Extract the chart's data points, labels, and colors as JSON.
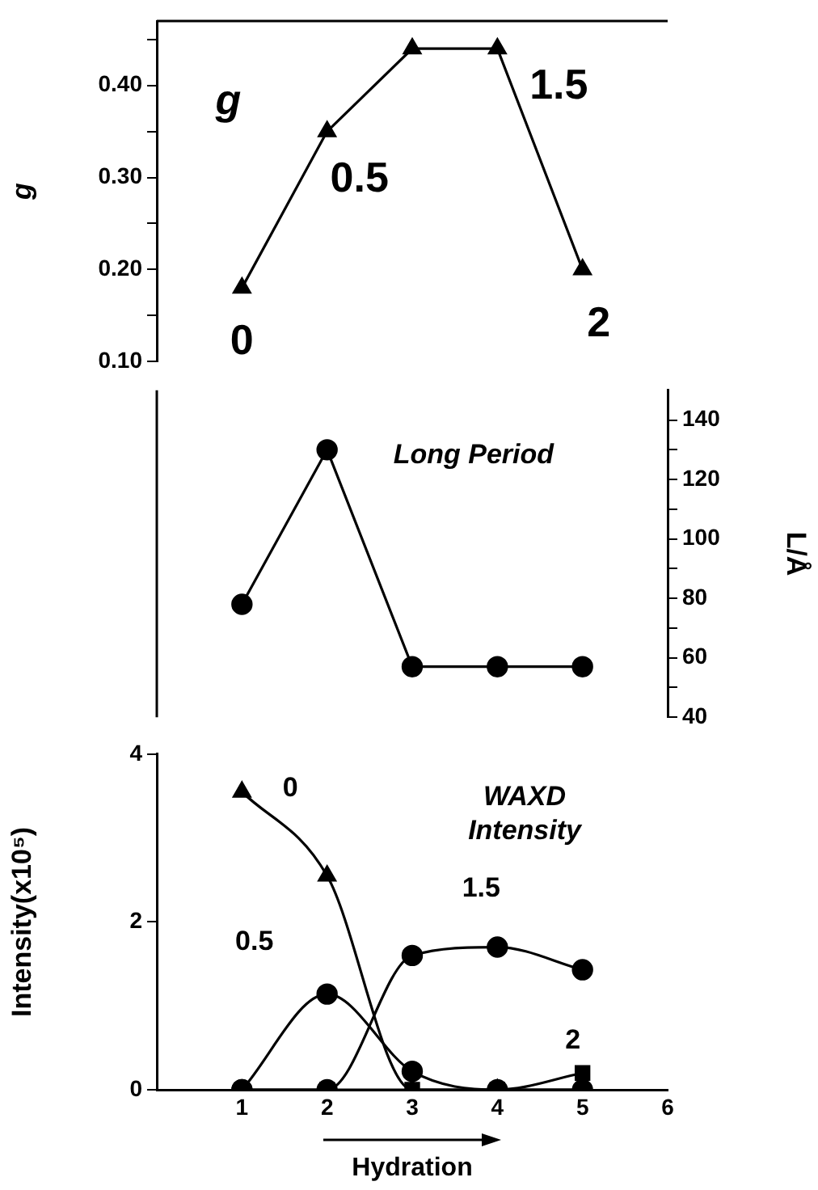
{
  "chart_data": [
    {
      "type": "line",
      "ylabel": "g",
      "annotations": [
        "g",
        {
          "text": "0",
          "x": 1,
          "y": 0.18
        },
        {
          "text": "0.5",
          "x": 2,
          "y": 0.35
        },
        {
          "text": "1.5",
          "x": 4,
          "y": 0.44
        },
        {
          "text": "2",
          "x": 5,
          "y": 0.2
        }
      ],
      "x": [
        1,
        2,
        3,
        4,
        5
      ],
      "series": [
        {
          "color": "#000000",
          "values": [
            0.18,
            0.35,
            0.44,
            0.44,
            0.2
          ]
        }
      ],
      "marker": "triangle",
      "xlim": [
        0,
        6
      ],
      "ylim": [
        0.1,
        0.47
      ],
      "yticks": [
        {
          "value": 0.1,
          "label": "0.10"
        },
        {
          "value": 0.15,
          "label": null
        },
        {
          "value": 0.2,
          "label": "0.20"
        },
        {
          "value": 0.25,
          "label": null
        },
        {
          "value": 0.3,
          "label": "0.30"
        },
        {
          "value": 0.35,
          "label": null
        },
        {
          "value": 0.4,
          "label": "0.40"
        },
        {
          "value": 0.45,
          "label": null
        }
      ],
      "tick_labels": "y"
    },
    {
      "type": "line",
      "y2label": "L/Å",
      "annotations": [
        "Long Period"
      ],
      "x": [
        1,
        2,
        3,
        4,
        5
      ],
      "series": [
        {
          "color": "#000000",
          "values": [
            78,
            130,
            57,
            57,
            57
          ],
          "axis": "y2"
        }
      ],
      "marker": "circle",
      "xlim": [
        0,
        6
      ],
      "y2lim": [
        40,
        150
      ],
      "y2ticks": [
        40,
        {
          "value": 50,
          "label": null
        },
        60,
        {
          "value": 70,
          "label": null
        },
        80,
        {
          "value": 90,
          "label": null
        },
        100,
        {
          "value": 110,
          "label": null
        },
        120,
        {
          "value": 130,
          "label": null
        },
        140
      ],
      "tick_labels": "y"
    },
    {
      "type": "line",
      "xlabel": "Hydration",
      "ylabel": "Intensity(x10⁵)",
      "annotations": [
        "WAXD Intensity"
      ],
      "x": [
        1,
        2,
        3,
        4,
        5
      ],
      "series": [
        {
          "name": "0",
          "color": "#000000",
          "values": [
            3.55,
            2.55,
            0,
            0,
            0
          ],
          "marker": "triangle"
        },
        {
          "name": "0.5",
          "color": "#000000",
          "values": [
            0,
            1.14,
            0.22,
            0,
            0
          ],
          "marker": "circle"
        },
        {
          "name": "1.5",
          "color": "#000000",
          "values": [
            0,
            0,
            1.6,
            1.7,
            1.43
          ],
          "marker": "circle"
        },
        {
          "name": "2",
          "color": "#000000",
          "values": [
            0,
            0,
            0,
            0,
            0.2
          ],
          "marker": "square"
        }
      ],
      "xlim": [
        0,
        6
      ],
      "xticks": [
        1,
        2,
        3,
        4,
        5,
        6
      ],
      "ylim": [
        0,
        4
      ],
      "yticks": [
        0,
        2,
        4
      ]
    }
  ]
}
